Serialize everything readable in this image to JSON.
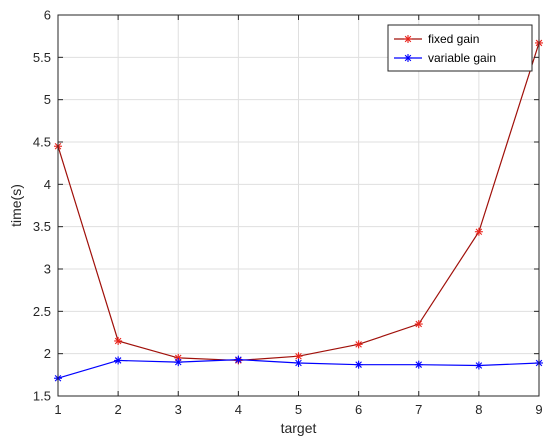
{
  "chart_data": {
    "type": "line",
    "title": "",
    "xlabel": "target",
    "ylabel": "time(s)",
    "x": [
      1,
      2,
      3,
      4,
      5,
      6,
      7,
      8,
      9
    ],
    "x_ticks": [
      "1",
      "2",
      "3",
      "4",
      "5",
      "6",
      "7",
      "8",
      "9"
    ],
    "y_ticks": [
      "1.5",
      "2",
      "2.5",
      "3",
      "3.5",
      "4",
      "4.5",
      "5",
      "5.5",
      "6"
    ],
    "xlim": [
      1,
      9
    ],
    "ylim": [
      1.5,
      6
    ],
    "grid": true,
    "legend_position": "top-right",
    "series": [
      {
        "name": "fixed gain",
        "color": "#a0100a",
        "marker_color": "#e8231b",
        "marker": "asterisk",
        "values": [
          4.45,
          2.15,
          1.95,
          1.92,
          1.97,
          2.11,
          2.35,
          3.44,
          5.67
        ]
      },
      {
        "name": "variable gain",
        "color": "#0000ff",
        "marker_color": "#0000ff",
        "marker": "asterisk",
        "values": [
          1.71,
          1.92,
          1.9,
          1.93,
          1.89,
          1.87,
          1.87,
          1.86,
          1.89
        ]
      }
    ]
  }
}
